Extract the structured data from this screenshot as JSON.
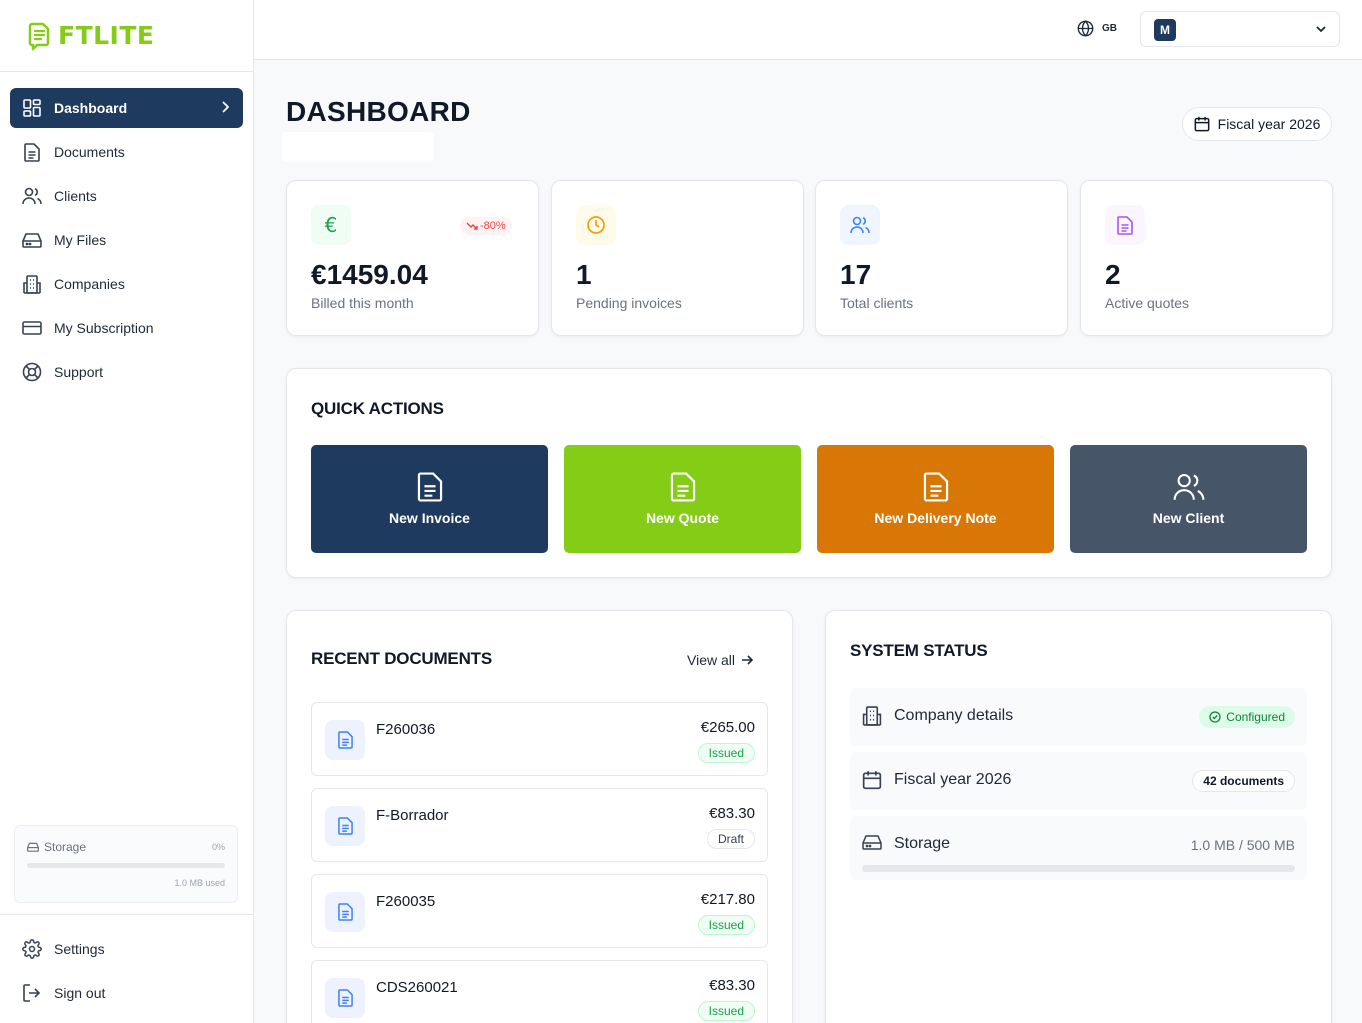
{
  "app": {
    "logo_text": "FTLITE"
  },
  "sidebar": {
    "items": [
      {
        "label": "Dashboard",
        "icon": "dashboard-icon",
        "active": true
      },
      {
        "label": "Documents",
        "icon": "document-icon"
      },
      {
        "label": "Clients",
        "icon": "users-icon"
      },
      {
        "label": "My Files",
        "icon": "drive-icon"
      },
      {
        "label": "Companies",
        "icon": "building-icon"
      },
      {
        "label": "My Subscription",
        "icon": "credit-card-icon"
      },
      {
        "label": "Support",
        "icon": "lifebuoy-icon"
      }
    ],
    "storage": {
      "label": "Storage",
      "percent": "0%",
      "used": "1.0 MB used",
      "fill_fraction": 0.0
    },
    "bottom": [
      {
        "label": "Settings",
        "icon": "gear-icon"
      },
      {
        "label": "Sign out",
        "icon": "sign-out-icon"
      }
    ]
  },
  "topbar": {
    "language": "GB",
    "user_initial": "M"
  },
  "page": {
    "title": "DASHBOARD",
    "fiscal_year_button": "Fiscal year 2026"
  },
  "stats": [
    {
      "value": "€1459.04",
      "label": "Billed this month",
      "trend": "-80%",
      "icon": "euro-icon",
      "color": "#16a34a"
    },
    {
      "value": "1",
      "label": "Pending invoices",
      "icon": "clock-icon",
      "color": "#f59e0b"
    },
    {
      "value": "17",
      "label": "Total clients",
      "icon": "users-icon",
      "color": "#3b82f6"
    },
    {
      "value": "2",
      "label": "Active quotes",
      "icon": "document-icon",
      "color": "#a855f7"
    }
  ],
  "quick_actions": {
    "title": "QUICK ACTIONS",
    "buttons": [
      {
        "label": "New Invoice",
        "color": "#1e3a5f",
        "icon": "document-icon"
      },
      {
        "label": "New Quote",
        "color": "#84cc16",
        "icon": "document-icon"
      },
      {
        "label": "New Delivery Note",
        "color": "#d97706",
        "icon": "document-icon"
      },
      {
        "label": "New Client",
        "color": "#475569",
        "icon": "users-icon"
      }
    ]
  },
  "recent_documents": {
    "title": "RECENT DOCUMENTS",
    "view_all": "View all",
    "rows": [
      {
        "number": "F260036",
        "amount": "€265.00",
        "status": "Issued"
      },
      {
        "number": "F-Borrador",
        "amount": "€83.30",
        "status": "Draft"
      },
      {
        "number": "F260035",
        "amount": "€217.80",
        "status": "Issued"
      },
      {
        "number": "CDS260021",
        "amount": "€83.30",
        "status": "Issued"
      }
    ]
  },
  "system_status": {
    "title": "SYSTEM STATUS",
    "company": {
      "label": "Company details",
      "status": "Configured"
    },
    "fiscal": {
      "label": "Fiscal year 2026",
      "count": "42 documents"
    },
    "storage": {
      "label": "Storage",
      "value": "1.0 MB / 500 MB",
      "fill_fraction": 0.002
    }
  }
}
